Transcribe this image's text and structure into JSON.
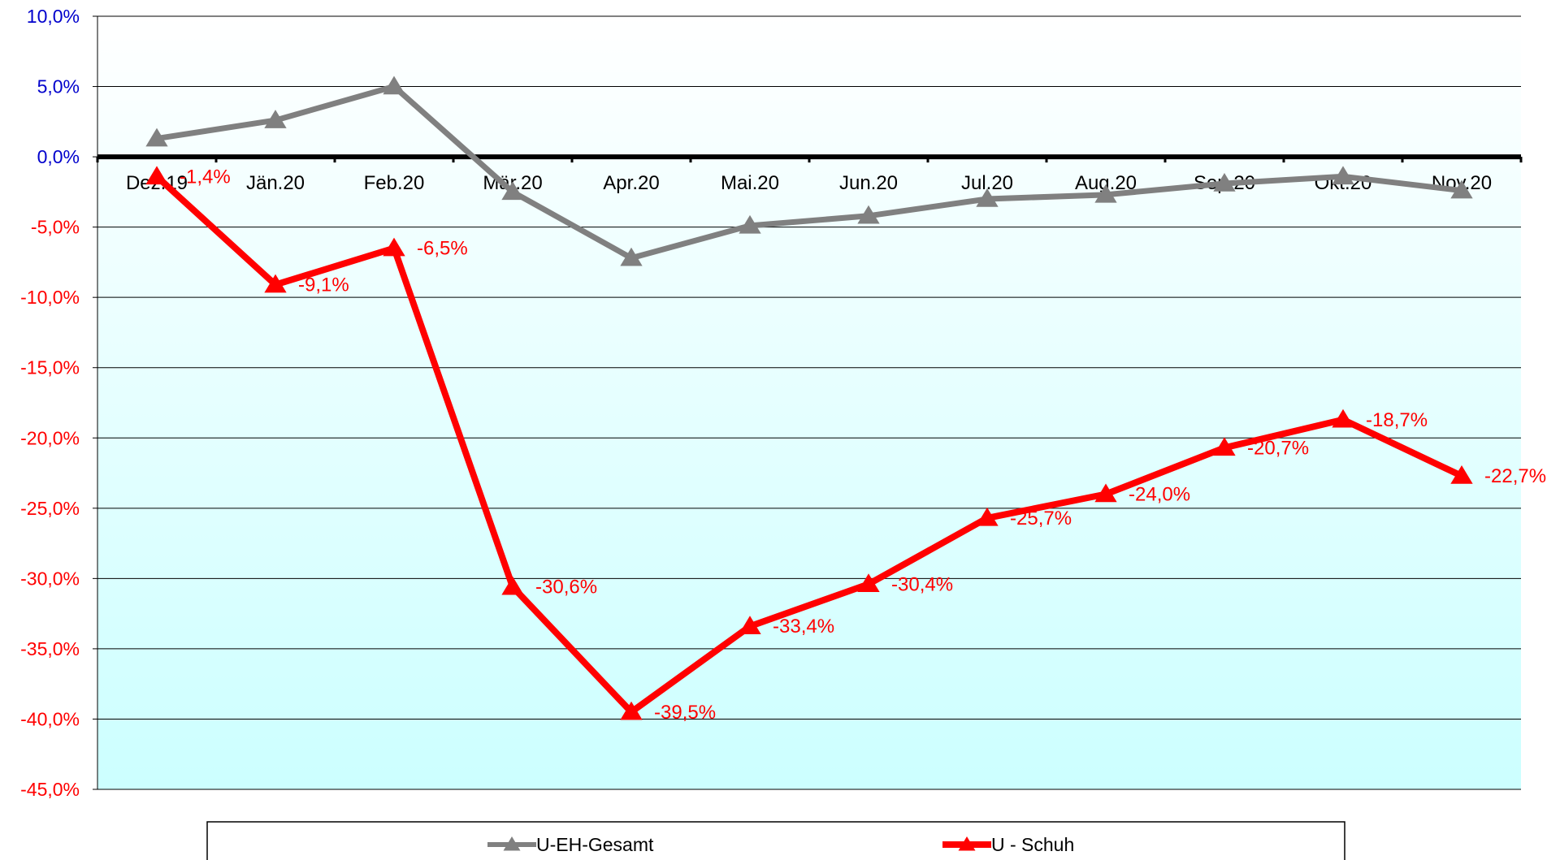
{
  "chart_data": {
    "type": "line",
    "title": "",
    "xlabel": "",
    "ylabel": "",
    "categories": [
      "Dez.19",
      "Jän.20",
      "Feb.20",
      "Mär.20",
      "Apr.20",
      "Mai.20",
      "Jun.20",
      "Jul.20",
      "Aug.20",
      "Sep.20",
      "Okt.20",
      "Nov.20"
    ],
    "ylim": [
      -45,
      10
    ],
    "yticks": [
      10,
      5,
      0,
      -5,
      -10,
      -15,
      -20,
      -25,
      -30,
      -35,
      -40,
      -45
    ],
    "ytick_labels": [
      "10,0%",
      "5,0%",
      "0,0%",
      "-5,0%",
      "-10,0%",
      "-15,0%",
      "-20,0%",
      "-25,0%",
      "-30,0%",
      "-35,0%",
      "-40,0%",
      "-45,0%"
    ],
    "ytick_colors": {
      "positive": "#0000cc",
      "zero": "#0000cc",
      "negative": "#ff0000"
    },
    "grid": true,
    "legend_position": "bottom",
    "background_gradient": [
      "#ffffff",
      "#ccffff"
    ],
    "series": [
      {
        "name": "U-EH-Gesamt",
        "color": "#808080",
        "marker": "triangle",
        "values": [
          1.3,
          2.6,
          5.0,
          -2.5,
          -7.2,
          -4.9,
          -4.2,
          -3.0,
          -2.7,
          -1.9,
          -1.4,
          -2.4
        ],
        "data_labels": []
      },
      {
        "name": "U - Schuh",
        "color": "#ff0000",
        "marker": "triangle",
        "values": [
          -1.4,
          -9.1,
          -6.5,
          -30.6,
          -39.5,
          -33.4,
          -30.4,
          -25.7,
          -24.0,
          -20.7,
          -18.7,
          -22.7
        ],
        "data_labels": [
          "-1,4%",
          "-9,1%",
          "-6,5%",
          "-30,6%",
          "-39,5%",
          "-33,4%",
          "-30,4%",
          "-25,7%",
          "-24,0%",
          "-20,7%",
          "-18,7%",
          "-22,7%"
        ]
      }
    ]
  }
}
